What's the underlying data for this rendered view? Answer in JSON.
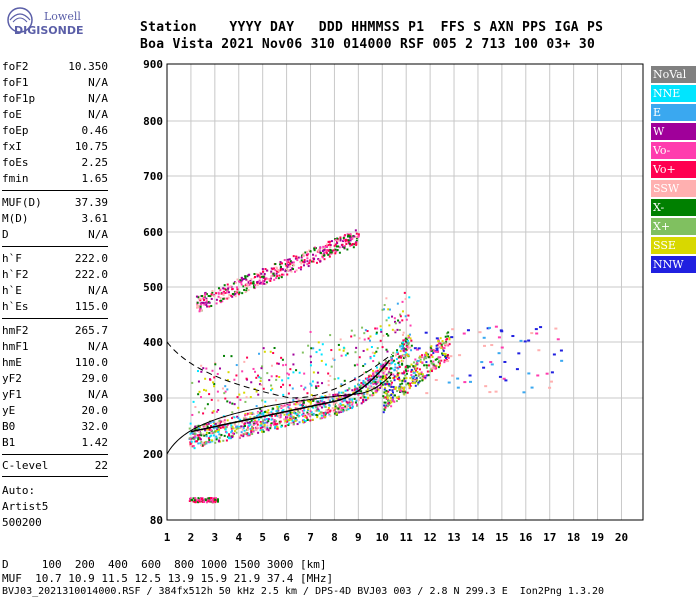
{
  "logo": {
    "line1": "Lowell",
    "line2": "DIGISONDE"
  },
  "header": {
    "labels": "Station    YYYY DAY   DDD HHMMSS P1  FFS S AXN PPS IGA PS",
    "values": "Boa Vista 2021 Nov06 310 014000 RSF 005 2 713 100 03+ 30"
  },
  "params": [
    {
      "k": "foF2",
      "v": "10.350"
    },
    {
      "k": "foF1",
      "v": "N/A"
    },
    {
      "k": "foF1p",
      "v": "N/A"
    },
    {
      "k": "foE",
      "v": "N/A"
    },
    {
      "k": "foEp",
      "v": "0.46"
    },
    {
      "k": "fxI",
      "v": "10.75"
    },
    {
      "k": "foEs",
      "v": "2.25"
    },
    {
      "k": "fmin",
      "v": "1.65"
    },
    {
      "k": "MUF(D)",
      "v": "37.39"
    },
    {
      "k": "M(D)",
      "v": "3.61"
    },
    {
      "k": "D",
      "v": "N/A"
    },
    {
      "k": "h`F",
      "v": "222.0"
    },
    {
      "k": "h`F2",
      "v": "222.0"
    },
    {
      "k": "h`E",
      "v": "N/A"
    },
    {
      "k": "h`Es",
      "v": "115.0"
    },
    {
      "k": "hmF2",
      "v": "265.7"
    },
    {
      "k": "hmF1",
      "v": "N/A"
    },
    {
      "k": "hmE",
      "v": "110.0"
    },
    {
      "k": "yF2",
      "v": "29.0"
    },
    {
      "k": "yF1",
      "v": "N/A"
    },
    {
      "k": "yE",
      "v": "20.0"
    },
    {
      "k": "B0",
      "v": "32.0"
    },
    {
      "k": "B1",
      "v": "1.42"
    },
    {
      "k": "C-level",
      "v": "22"
    }
  ],
  "auto": {
    "l1": "Auto:",
    "l2": "Artist5",
    "l3": "500200"
  },
  "legend": [
    {
      "label": "NoVal",
      "bg": "#808080",
      "fg": "#ffffff"
    },
    {
      "label": "NNE",
      "bg": "#00e5ff",
      "fg": "#ffffff"
    },
    {
      "label": "E",
      "bg": "#3aa8f0",
      "fg": "#ffffff"
    },
    {
      "label": "W",
      "bg": "#a0009a",
      "fg": "#ffffff"
    },
    {
      "label": "Vo-",
      "bg": "#ff3cae",
      "fg": "#ffffff"
    },
    {
      "label": "Vo+",
      "bg": "#ff0050",
      "fg": "#ffffff"
    },
    {
      "label": "SSW",
      "bg": "#ffb0b0",
      "fg": "#ffffff"
    },
    {
      "label": "X-",
      "bg": "#008000",
      "fg": "#ffffff"
    },
    {
      "label": "X+",
      "bg": "#80c060",
      "fg": "#ffffff"
    },
    {
      "label": "SSE",
      "bg": "#d8d800",
      "fg": "#ffffff"
    },
    {
      "label": "NNW",
      "bg": "#2020e0",
      "fg": "#ffffff"
    }
  ],
  "plot": {
    "yticks": [
      "900",
      "800",
      "700",
      "600",
      "500",
      "400",
      "300",
      "200",
      "80"
    ],
    "xticks": [
      "1",
      "2",
      "3",
      "4",
      "5",
      "6",
      "7",
      "8",
      "9",
      "10",
      "11",
      "12",
      "13",
      "14",
      "15",
      "16",
      "17",
      "18",
      "19",
      "20"
    ]
  },
  "bottom": {
    "line1": "D     100  200  400  600  800 1000 1500 3000 [km]",
    "line2": "MUF  10.7 10.9 11.5 12.5 13.9 15.9 21.9 37.4 [MHz]",
    "line3": "BVJ03_2021310014000.RSF / 384fx512h 50 kHz 2.5 km / DPS-4D BVJ03 003 / 2.8 N 299.3 E  Ion2Png 1.3.20"
  }
}
